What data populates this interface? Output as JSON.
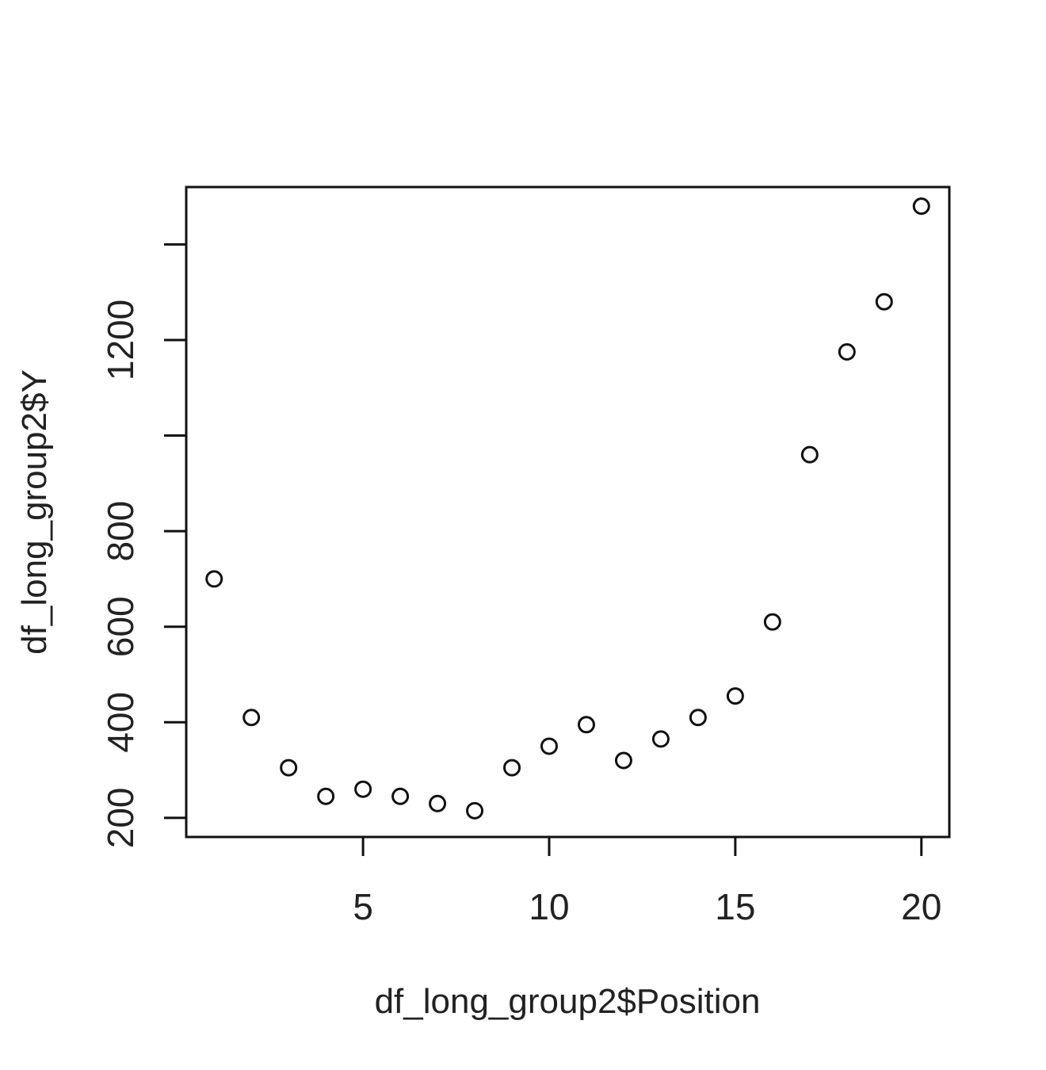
{
  "chart_data": {
    "type": "scatter",
    "title": "",
    "xlabel": "df_long_group2$Position",
    "ylabel": "df_long_group2$Y",
    "xlim": [
      0.25,
      20.75
    ],
    "ylim": [
      160,
      1520
    ],
    "x_ticks": [
      5,
      10,
      15,
      20
    ],
    "y_ticks": [
      200,
      400,
      600,
      800,
      1000,
      1200,
      1400
    ],
    "y_tick_labels": [
      "200",
      "400",
      "600",
      "800",
      "",
      "1200",
      ""
    ],
    "grid": false,
    "legend": "none",
    "marker": "open-circle",
    "x": [
      1,
      2,
      3,
      4,
      5,
      6,
      7,
      8,
      9,
      10,
      11,
      12,
      13,
      14,
      15,
      16,
      17,
      18,
      19,
      20
    ],
    "y": [
      700,
      410,
      305,
      245,
      260,
      245,
      230,
      215,
      305,
      350,
      395,
      320,
      365,
      410,
      455,
      610,
      960,
      1175,
      1280,
      1480
    ]
  }
}
